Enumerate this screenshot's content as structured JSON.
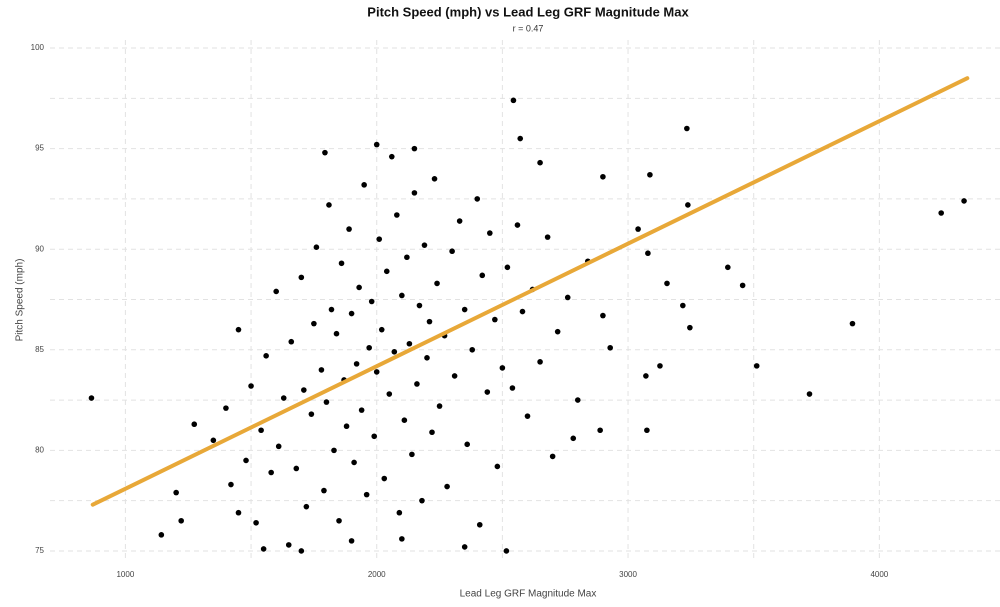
{
  "chart_data": {
    "type": "scatter",
    "title": "Pitch Speed (mph) vs Lead Leg GRF Magnitude Max",
    "subtitle": "r =  0.47",
    "x_label": "Lead Leg GRF Magnitude Max",
    "y_label": "Pitch Speed (mph)",
    "xlim": [
      700,
      4480
    ],
    "ylim": [
      74.5,
      100.4
    ],
    "xticks": [
      1000,
      2000,
      3000,
      4000
    ],
    "yticks": [
      75,
      80,
      85,
      90,
      95,
      100
    ],
    "grid": true,
    "series": [
      {
        "color": "#000000",
        "x": [
          865,
          3234,
          4337,
          4246,
          3893,
          3722,
          3512,
          3456,
          3397,
          3238,
          3087,
          3218,
          3246,
          3155,
          3079,
          3040,
          3075,
          3127,
          3071,
          2544,
          2516,
          2571,
          1794,
          1202,
          1143,
          1222,
          1274,
          2929,
          2889,
          2782,
          1350,
          1400,
          1420,
          1450,
          1480,
          1500,
          1520,
          1540,
          1560,
          1580,
          1600,
          1610,
          1630,
          1650,
          1660,
          1680,
          1700,
          1710,
          1720,
          1740,
          1750,
          1760,
          1780,
          1790,
          1800,
          1810,
          1820,
          1830,
          1840,
          1850,
          1860,
          1870,
          1880,
          1890,
          1900,
          1910,
          1920,
          1930,
          1940,
          1950,
          1960,
          1970,
          1980,
          1990,
          2000,
          2010,
          2020,
          2030,
          2040,
          2050,
          2060,
          2070,
          2080,
          2090,
          2100,
          2110,
          2120,
          2130,
          2140,
          2150,
          2160,
          2170,
          2180,
          2190,
          2200,
          2210,
          2220,
          2230,
          2240,
          2250,
          2270,
          2280,
          2300,
          2310,
          2330,
          2350,
          2360,
          2380,
          2400,
          2410,
          2420,
          2440,
          2450,
          2470,
          2480,
          2500,
          2520,
          2540,
          2560,
          2580,
          2600,
          2620,
          2650,
          2680,
          2700,
          2720,
          2760,
          2800,
          2840,
          2900,
          1550,
          1700,
          1900,
          2100,
          2350,
          1450,
          2000,
          2150,
          2650,
          2900
        ],
        "values": [
          82.6,
          96.0,
          92.4,
          91.8,
          86.3,
          82.8,
          84.2,
          88.2,
          89.1,
          92.2,
          93.7,
          87.2,
          86.1,
          88.3,
          89.8,
          91.0,
          81.0,
          84.2,
          83.7,
          97.4,
          75.0,
          95.5,
          94.8,
          77.9,
          75.8,
          76.5,
          81.3,
          85.1,
          81.0,
          80.6,
          80.5,
          82.1,
          78.3,
          86.0,
          79.5,
          83.2,
          76.4,
          81.0,
          84.7,
          78.9,
          87.9,
          80.2,
          82.6,
          75.3,
          85.4,
          79.1,
          88.6,
          83.0,
          77.2,
          81.8,
          86.3,
          90.1,
          84.0,
          78.0,
          82.4,
          92.2,
          87.0,
          80.0,
          85.8,
          76.5,
          89.3,
          83.5,
          81.2,
          91.0,
          86.8,
          79.4,
          84.3,
          88.1,
          82.0,
          93.2,
          77.8,
          85.1,
          87.4,
          80.7,
          83.9,
          90.5,
          86.0,
          78.6,
          88.9,
          82.8,
          94.6,
          84.9,
          91.7,
          76.9,
          87.7,
          81.5,
          89.6,
          85.3,
          79.8,
          92.8,
          83.3,
          87.2,
          77.5,
          90.2,
          84.6,
          86.4,
          80.9,
          93.5,
          88.3,
          82.2,
          85.7,
          78.2,
          89.9,
          83.7,
          91.4,
          87.0,
          80.3,
          85.0,
          92.5,
          76.3,
          88.7,
          82.9,
          90.8,
          86.5,
          79.2,
          84.1,
          89.1,
          83.1,
          91.2,
          86.9,
          81.7,
          88.0,
          84.4,
          90.6,
          79.7,
          85.9,
          87.6,
          82.5,
          89.4,
          86.7,
          75.1,
          75.0,
          75.5,
          75.6,
          75.2,
          76.9,
          95.2,
          95.0,
          94.3,
          93.6
        ]
      }
    ],
    "trendline": {
      "color": "#e8a838",
      "x": [
        870,
        4350
      ],
      "values": [
        77.3,
        98.5
      ]
    }
  }
}
